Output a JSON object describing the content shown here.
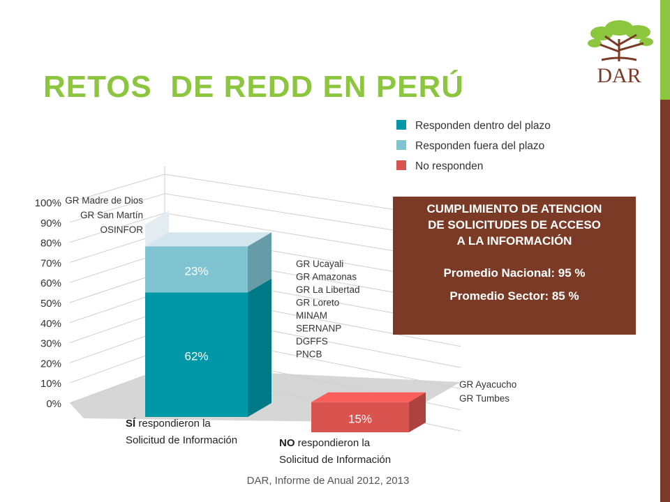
{
  "slide": {
    "title": "RETOS  DE REDD EN PERÚ",
    "source": "DAR, Informe de Anual 2012, 2013",
    "logo_text": "DAR"
  },
  "colors": {
    "title": "#8cc63f",
    "teal_dark": "#0097a7",
    "teal_light": "#80c3d1",
    "red": "#d9534f",
    "box_brown": "#7b3a26",
    "side_green": "#8cc63f",
    "side_brown": "#7b3a26"
  },
  "info_box": {
    "line1": "CUMPLIMIENTO DE ATENCION",
    "line2": "DE SOLICITUDES DE ACCESO",
    "line3": "A LA INFORMACIÓN",
    "line4": "Promedio Nacional: 95 %",
    "line5": "Promedio Sector: 85 %"
  },
  "chart_data": {
    "type": "bar",
    "stacked": true,
    "categories_bold": [
      "SÍ",
      "NO"
    ],
    "categories_rest": [
      " respondieron la",
      " respondieron la"
    ],
    "categories_line2": [
      "Solicitud de Información",
      "Solicitud de Información"
    ],
    "ylim": [
      0,
      100
    ],
    "yticks": [
      "0%",
      "10%",
      "20%",
      "30%",
      "40%",
      "50%",
      "60%",
      "70%",
      "80%",
      "90%",
      "100%"
    ],
    "series": [
      {
        "name": "Responden dentro del plazo",
        "color": "#0097a7",
        "values": [
          62,
          0
        ],
        "labels": [
          "62%",
          ""
        ]
      },
      {
        "name": "Responden fuera del plazo",
        "color": "#80c3d1",
        "values": [
          23,
          0
        ],
        "labels": [
          "23%",
          ""
        ]
      },
      {
        "name": "No responden",
        "color": "#d9534f",
        "values": [
          0,
          15
        ],
        "labels": [
          "",
          "15%"
        ]
      }
    ],
    "legend": [
      "Responden dentro del plazo",
      "Responden fuera del plazo",
      "No responden"
    ],
    "legend_position": "top-right",
    "annotations": {
      "bar1_top": [
        "GR Madre de Dios",
        "GR San Martín",
        "OSINFOR"
      ],
      "bar1_right": [
        "GR Ucayali",
        "GR Amazonas",
        "GR La Libertad",
        "GR Loreto",
        "MINAM",
        "SERNANP",
        "DGFFS",
        "PNCB"
      ],
      "bar2_right": [
        "GR Ayacucho",
        "GR Tumbes"
      ]
    },
    "grid": true
  }
}
